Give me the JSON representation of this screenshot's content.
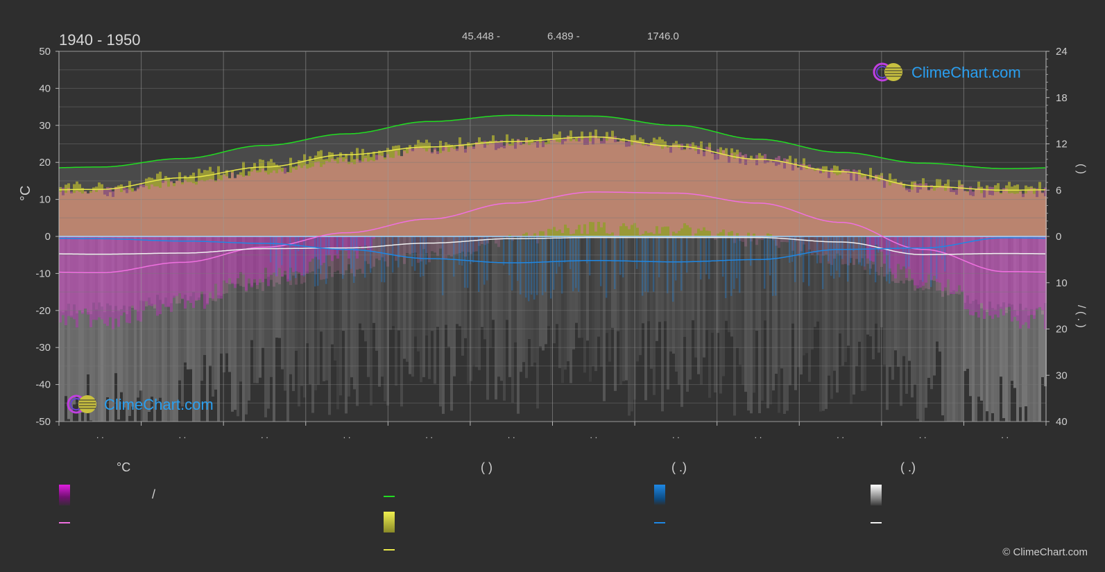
{
  "header": {
    "period": "1940 - 1950",
    "lat": "45.448 -",
    "lon": "6.489 -",
    "elevation": "1746.0"
  },
  "brand": {
    "name": "ClimeChart.com",
    "copyright": "© ClimeChart.com"
  },
  "legend": {
    "col1": {
      "heading": "°C",
      "item1": "/"
    },
    "col2": {
      "heading": "(           )"
    },
    "col3": {
      "heading": "(   .)"
    },
    "col4": {
      "heading": "(   .)"
    }
  },
  "colors": {
    "background": "#2e2e2e",
    "daylight": "#22dd22",
    "sunshine": "#e8e84a",
    "sunshine_fill": "#b4b432",
    "temp_max_fill": "#e26bb4",
    "temp_min_fill": "#c030c0",
    "temp_mean": "#f070e0",
    "rain": "#1e88e5",
    "snow": "#f0f0f0"
  },
  "chart_data": {
    "type": "area",
    "months": 12,
    "month_tick_labels": [
      ". .",
      ". .",
      ". .",
      ". .",
      ". .",
      ". .",
      ". .",
      ". .",
      ". .",
      ". .",
      ". .",
      ". ."
    ],
    "left_axis": {
      "unit": "°C",
      "ylim": [
        -50,
        50
      ],
      "ticks": [
        50,
        40,
        30,
        20,
        10,
        0,
        -10,
        -20,
        -30,
        -40,
        -50
      ]
    },
    "right_axis_top": {
      "ticks": [
        24,
        18,
        12,
        6,
        0
      ],
      "range": [
        0,
        24
      ],
      "label": "(    )"
    },
    "right_axis_bottom": {
      "ticks": [
        0,
        10,
        20,
        30,
        40
      ],
      "range": [
        0,
        40
      ],
      "label": "/  ( . )"
    },
    "series": [
      {
        "key": "daylight",
        "axis": "hours",
        "values": [
          9.0,
          10.1,
          11.8,
          13.3,
          14.9,
          15.7,
          15.6,
          14.4,
          12.6,
          10.9,
          9.5,
          8.8
        ]
      },
      {
        "key": "sunshine",
        "axis": "hours",
        "values": [
          6.1,
          7.6,
          9.0,
          10.6,
          11.6,
          12.3,
          12.9,
          11.7,
          10.0,
          8.4,
          6.5,
          6.0
        ]
      },
      {
        "key": "temp_max_band",
        "axis": "celsius",
        "values": [
          14,
          16,
          19,
          22,
          25,
          27,
          28,
          26,
          23,
          19,
          15,
          14
        ]
      },
      {
        "key": "temp_mean",
        "axis": "celsius",
        "values": [
          -9.8,
          -7.0,
          -2.9,
          1.0,
          4.7,
          9.0,
          12.0,
          11.7,
          9.0,
          3.8,
          -3.5,
          -9.5
        ]
      },
      {
        "key": "snow",
        "axis": "celsius",
        "values": [
          -4.8,
          -4.5,
          -3.3,
          -3.1,
          -1.8,
          -0.6,
          -0.3,
          -0.3,
          -0.3,
          -1.5,
          -4.9,
          -4.6
        ]
      },
      {
        "key": "rain",
        "axis": "mm",
        "values": [
          0.5,
          1.0,
          1.5,
          2.8,
          4.8,
          5.7,
          5.2,
          5.5,
          5.0,
          2.8,
          2.5,
          0.3
        ]
      }
    ]
  }
}
